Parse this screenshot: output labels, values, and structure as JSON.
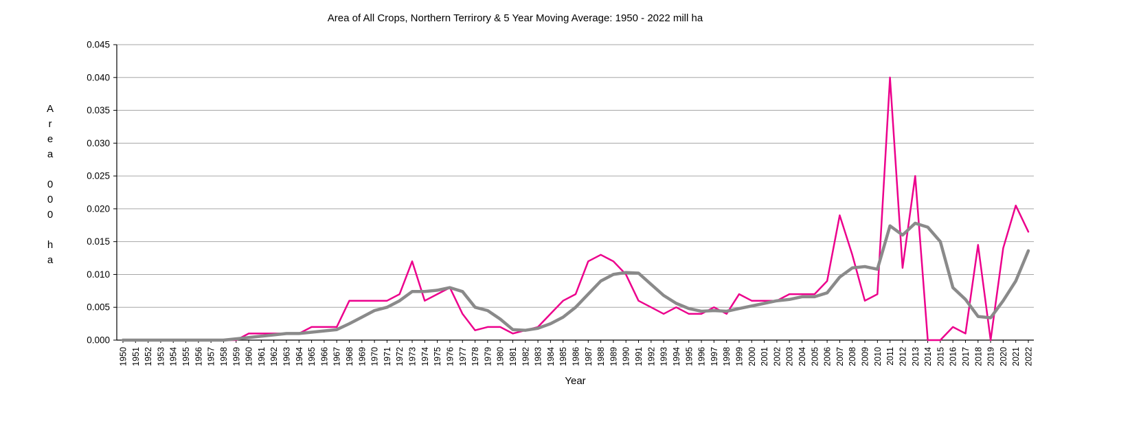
{
  "title": "Area of All Crops, Northern Terrirory  & 5 Year Moving Average: 1950 - 2022 mill ha",
  "xlabel": "Year",
  "ylabel_stacked": "A\nr\ne\na\n\n0\n0\n0\n\nh\na",
  "chart_data": {
    "type": "line",
    "title": "Area of All Crops, Northern Terrirory  & 5 Year Moving Average: 1950 - 2022 mill ha",
    "xlabel": "Year",
    "ylabel": "Area 000 ha",
    "ylim": [
      0,
      0.045
    ],
    "ytick_step": 0.005,
    "ytick_decimals": 3,
    "grid": true,
    "legend_position": "none",
    "x": [
      1950,
      1951,
      1952,
      1953,
      1954,
      1955,
      1956,
      1957,
      1958,
      1959,
      1960,
      1961,
      1962,
      1963,
      1964,
      1965,
      1966,
      1967,
      1968,
      1969,
      1970,
      1971,
      1972,
      1973,
      1974,
      1975,
      1976,
      1977,
      1978,
      1979,
      1980,
      1981,
      1982,
      1983,
      1984,
      1985,
      1986,
      1987,
      1988,
      1989,
      1990,
      1991,
      1992,
      1993,
      1994,
      1995,
      1996,
      1997,
      1998,
      1999,
      2000,
      2001,
      2002,
      2003,
      2004,
      2005,
      2006,
      2007,
      2008,
      2009,
      2010,
      2011,
      2012,
      2013,
      2014,
      2015,
      2016,
      2017,
      2018,
      2019,
      2020,
      2021,
      2022
    ],
    "series": [
      {
        "name": "Area of all crops",
        "color": "#ec008c",
        "stroke_width": 2.5,
        "values": [
          0.0,
          0.0,
          0.0,
          0.0,
          0.0,
          0.0,
          0.0,
          0.0,
          0.0,
          0.0,
          0.001,
          0.001,
          0.001,
          0.001,
          0.001,
          0.002,
          0.002,
          0.002,
          0.006,
          0.006,
          0.006,
          0.006,
          0.007,
          0.012,
          0.006,
          0.007,
          0.008,
          0.004,
          0.0015,
          0.002,
          0.002,
          0.001,
          0.0015,
          0.002,
          0.004,
          0.006,
          0.007,
          0.012,
          0.013,
          0.012,
          0.01,
          0.006,
          0.005,
          0.004,
          0.005,
          0.004,
          0.004,
          0.005,
          0.004,
          0.007,
          0.006,
          0.006,
          0.006,
          0.007,
          0.007,
          0.007,
          0.009,
          0.019,
          0.013,
          0.006,
          0.007,
          0.04,
          0.011,
          0.025,
          0.0,
          0.0,
          0.002,
          0.001,
          0.0145,
          0.0,
          0.014,
          0.0205,
          0.0165
        ]
      },
      {
        "name": "5 year moving average",
        "color": "#8a8a8a",
        "stroke_width": 4.5,
        "values": [
          0.0,
          0.0,
          0.0,
          0.0,
          0.0,
          0.0,
          0.0,
          0.0,
          0.0,
          0.0002,
          0.0004,
          0.0006,
          0.0008,
          0.001,
          0.001,
          0.0012,
          0.0014,
          0.0016,
          0.0025,
          0.0035,
          0.0045,
          0.005,
          0.006,
          0.0074,
          0.0074,
          0.0076,
          0.008,
          0.0074,
          0.005,
          0.0045,
          0.0032,
          0.0016,
          0.0015,
          0.0018,
          0.0025,
          0.0035,
          0.005,
          0.007,
          0.009,
          0.01,
          0.0103,
          0.0102,
          0.0085,
          0.0068,
          0.0056,
          0.0048,
          0.0044,
          0.0045,
          0.0044,
          0.0048,
          0.0052,
          0.0056,
          0.006,
          0.0062,
          0.0066,
          0.0066,
          0.0072,
          0.0096,
          0.011,
          0.0112,
          0.0108,
          0.0174,
          0.016,
          0.0178,
          0.0172,
          0.015,
          0.008,
          0.0062,
          0.0036,
          0.0034,
          0.006,
          0.009,
          0.0136
        ]
      }
    ]
  }
}
